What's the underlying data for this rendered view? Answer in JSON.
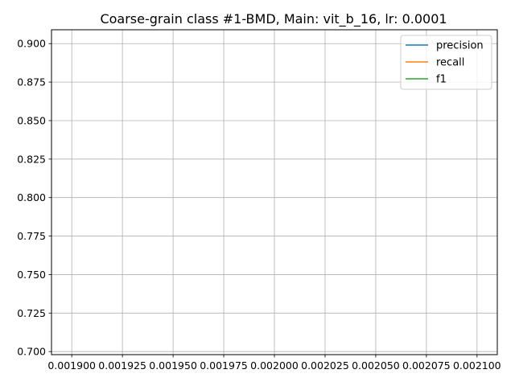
{
  "chart_data": {
    "type": "line",
    "title": "Coarse-grain class #1-BMD, Main: vit_b_16, lr: 0.0001",
    "xlabel": "",
    "ylabel": "",
    "xlim": [
      0.00189,
      0.00211
    ],
    "ylim": [
      0.698,
      0.909
    ],
    "x_ticks": [
      0.0019,
      0.001925,
      0.00195,
      0.001975,
      0.002,
      0.002025,
      0.00205,
      0.002075,
      0.0021
    ],
    "x_tick_labels": [
      "0.001900",
      "0.001925",
      "0.001950",
      "0.001975",
      "0.002000",
      "0.002025",
      "0.002050",
      "0.002075",
      "0.002100"
    ],
    "y_ticks": [
      0.7,
      0.725,
      0.75,
      0.775,
      0.8,
      0.825,
      0.85,
      0.875,
      0.9
    ],
    "y_tick_labels": [
      "0.700",
      "0.725",
      "0.750",
      "0.775",
      "0.800",
      "0.825",
      "0.850",
      "0.875",
      "0.900"
    ],
    "grid": true,
    "legend_position": "top-right",
    "series": [
      {
        "name": "precision",
        "color": "#1f77b4",
        "x": [],
        "y": []
      },
      {
        "name": "recall",
        "color": "#ff7f0e",
        "x": [],
        "y": []
      },
      {
        "name": "f1",
        "color": "#2ca02c",
        "x": [],
        "y": []
      }
    ]
  }
}
